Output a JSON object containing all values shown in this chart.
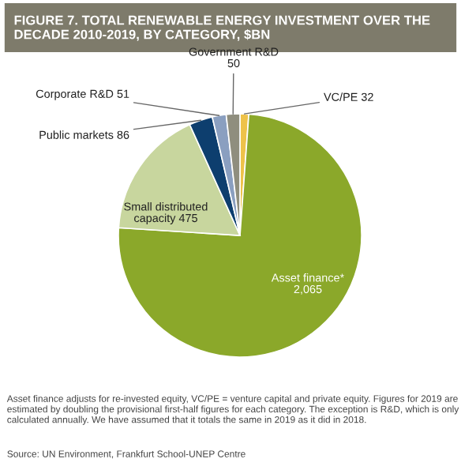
{
  "chart_data": {
    "type": "pie",
    "title": "FIGURE 7. TOTAL RENEWABLE ENERGY INVESTMENT OVER THE DECADE 2010-2019, BY CATEGORY, $BN",
    "categories": [
      "VC/PE",
      "Asset finance*",
      "Small distributed capacity",
      "Public markets",
      "Corporate R&D",
      "Government R&D"
    ],
    "values": [
      32,
      2065,
      475,
      86,
      51,
      50
    ],
    "value_labels": [
      "32",
      "2,065",
      "475",
      "86",
      "51",
      "50"
    ],
    "colors": [
      "#eec24a",
      "#8ba82a",
      "#c8d69e",
      "#0d3e6e",
      "#8a9fc0",
      "#8f8e7e"
    ],
    "annotations": [
      "Asset finance adjusts for re-invested equity, VC/PE = venture capital and private equity. Figures for 2019 are estimated by doubling the provisional first-half figures for each category. The exception is R&D, which is only calculated annually. We have assumed that it totals the same in 2019 as it did in 2018.",
      "Source: UN Environment, Frankfurt School-UNEP Centre"
    ]
  }
}
